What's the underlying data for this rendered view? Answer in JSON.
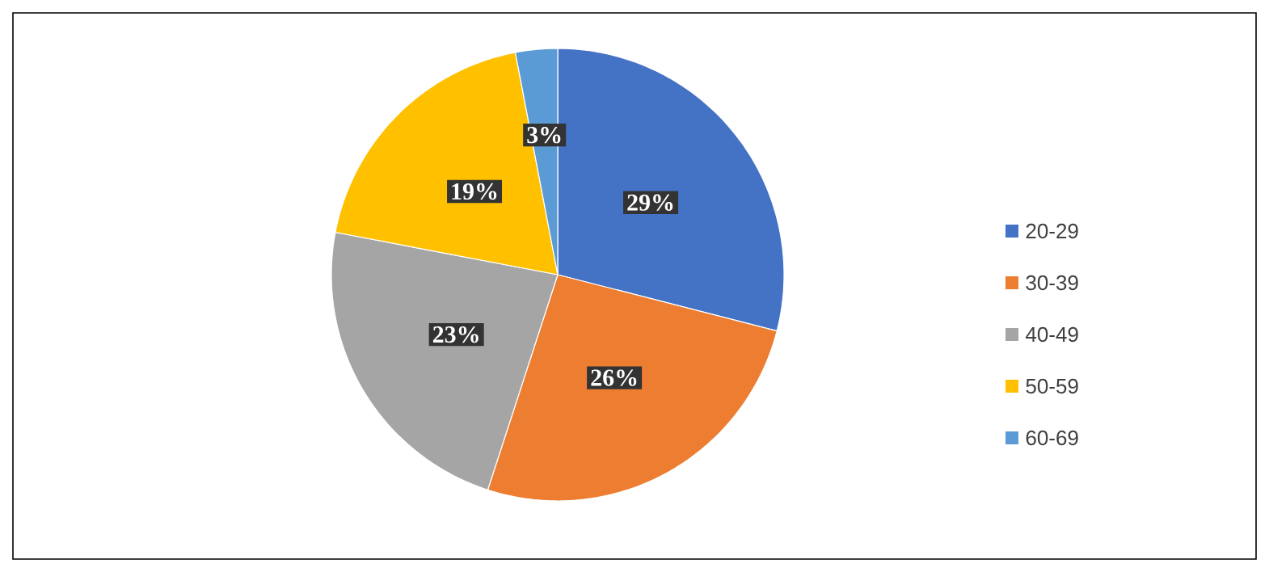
{
  "chart_data": {
    "type": "pie",
    "categories": [
      "20-29",
      "30-39",
      "40-49",
      "50-59",
      "60-69"
    ],
    "values": [
      29,
      26,
      23,
      19,
      3
    ],
    "value_labels": [
      "29%",
      "26%",
      "23%",
      "19%",
      "3%"
    ],
    "colors": [
      "#4472c4",
      "#ed7d31",
      "#a5a5a5",
      "#ffc000",
      "#5b9bd5"
    ],
    "legend": "right"
  }
}
